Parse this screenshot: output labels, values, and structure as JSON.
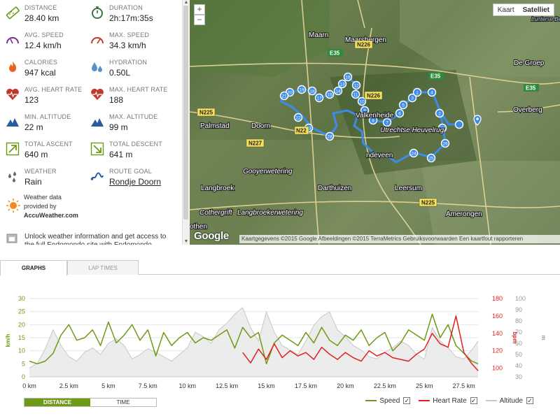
{
  "stats": {
    "distance": {
      "label": "DISTANCE",
      "value": "28.40 km"
    },
    "duration": {
      "label": "DURATION",
      "value": "2h:17m:35s"
    },
    "avg_speed": {
      "label": "AVG. SPEED",
      "value": "12.4 km/h"
    },
    "max_speed": {
      "label": "MAX. SPEED",
      "value": "34.3 km/h"
    },
    "calories": {
      "label": "CALORIES",
      "value": "947 kcal"
    },
    "hydration": {
      "label": "HYDRATION",
      "value": "0.50L"
    },
    "avg_hr": {
      "label": "AVG. HEART RATE",
      "value": "123"
    },
    "max_hr": {
      "label": "MAX. HEART RATE",
      "value": "188"
    },
    "min_alt": {
      "label": "MIN. ALTITUDE",
      "value": "22 m"
    },
    "max_alt": {
      "label": "MAX. ALTITUDE",
      "value": "99 m"
    },
    "ascent": {
      "label": "TOTAL ASCENT",
      "value": "640 m"
    },
    "descent": {
      "label": "TOTAL DESCENT",
      "value": "641 m"
    },
    "weather": {
      "label": "WEATHER",
      "value": "Rain"
    },
    "route_goal": {
      "label": "ROUTE GOAL",
      "value": "Rondje Doorn"
    }
  },
  "weather_credit": {
    "line1": "Weather data",
    "line2": "provided by",
    "brand": "AccuWeather.com"
  },
  "unlock": {
    "text": "Unlock weather information and get access to the full Endomondo site with Endomondo"
  },
  "map": {
    "zoom_in": "+",
    "zoom_out": "−",
    "type_map": "Kaart",
    "type_satellite": "Satelliet",
    "attribution": "Kaartgegevens ©2015 Google Afbeeldingen ©2015 TerraMetrics    Gebruiksvoorwaarden    Een kaartfout rapporteren",
    "google": "Google",
    "places": {
      "maarn": "Maarn",
      "maarsbergen": "Maarsbergen",
      "de_groep": "De Groep",
      "overberg": "Overberg",
      "palmstad": "Palmstad",
      "doorn": "Doorn",
      "valkenheide": "Valkenheide",
      "heuvelrug": "Utrechtse Heuvelrug",
      "gooyer": "Gooyerwetering",
      "langbroek": "Langbroek",
      "darthuizen": "Darthuizen",
      "leersum": "Leersum",
      "cothergrift": "Cothergrift",
      "langbroeker": "Langbroekerwetering",
      "amerongen": "Amerongen",
      "lunteren": "Lunterse Beek",
      "rothen": "othen",
      "overvee": "ndeveen"
    },
    "roads": {
      "n226a": "N226",
      "n226b": "N226",
      "n225a": "N225",
      "n225b": "N225",
      "n227": "N227",
      "n22": "N22",
      "e35a": "E35",
      "e35b": "E35",
      "e35c": "E35"
    },
    "markers": [
      "1",
      "2",
      "3",
      "4",
      "5",
      "6",
      "7",
      "8",
      "9",
      "10",
      "11",
      "12",
      "13",
      "14",
      "15",
      "16",
      "17",
      "18",
      "19",
      "20",
      "21",
      "22",
      "23",
      "24",
      "25",
      "26",
      "27",
      "28"
    ]
  },
  "tabs": {
    "graphs": "GRAPHS",
    "lap_times": "LAP TIMES"
  },
  "toggle": {
    "distance": "DISTANCE",
    "time": "TIME"
  },
  "legend": {
    "speed": "Speed",
    "heart_rate": "Heart Rate",
    "altitude": "Altitude",
    "check": "✓"
  },
  "colors": {
    "speed": "#6e9a16",
    "heart_rate": "#e02020",
    "altitude": "#c8c8c8",
    "route": "#3b8ce8"
  },
  "chart_data": {
    "type": "line",
    "x_unit_label": "km",
    "x_ticks": [
      "0 km",
      "2.5 km",
      "5 km",
      "7.5 km",
      "10 km",
      "12.5 km",
      "15 km",
      "17.5 km",
      "20 km",
      "22.5 km",
      "25 km",
      "27.5 km"
    ],
    "x_range": [
      0,
      28.4
    ],
    "y_left": {
      "label": "km/h",
      "range": [
        0,
        30
      ],
      "ticks": [
        "0",
        "5",
        "10",
        "15",
        "20",
        "25",
        "30"
      ]
    },
    "y_right1": {
      "label": "bpm",
      "range": [
        90,
        180
      ],
      "ticks": [
        "100",
        "120",
        "140",
        "160",
        "180"
      ]
    },
    "y_right2": {
      "label": "m",
      "range": [
        30,
        100
      ],
      "ticks": [
        "30",
        "40",
        "50",
        "60",
        "70",
        "80",
        "90",
        "100"
      ]
    },
    "series": [
      {
        "name": "Speed",
        "axis": "left",
        "x": [
          0,
          0.5,
          1,
          1.5,
          2,
          2.5,
          3,
          3.5,
          4,
          4.5,
          5,
          5.5,
          6,
          6.5,
          7,
          7.5,
          8,
          8.5,
          9,
          9.5,
          10,
          10.5,
          11,
          11.5,
          12,
          12.5,
          13,
          13.5,
          14,
          14.5,
          15,
          15.5,
          16,
          16.5,
          17,
          17.5,
          18,
          18.5,
          19,
          19.5,
          20,
          20.5,
          21,
          21.5,
          22,
          22.5,
          23,
          23.5,
          24,
          24.5,
          25,
          25.5,
          26,
          26.5,
          27,
          27.5,
          28,
          28.4
        ],
        "values": [
          6,
          5,
          6,
          9,
          16,
          20,
          14,
          15,
          18,
          12,
          21,
          13,
          16,
          20,
          14,
          18,
          8,
          17,
          12,
          15,
          17,
          13,
          15,
          14,
          16,
          18,
          11,
          19,
          15,
          17,
          5,
          13,
          16,
          14,
          12,
          17,
          13,
          19,
          14,
          12,
          16,
          14,
          18,
          12,
          15,
          17,
          10,
          13,
          18,
          16,
          14,
          24,
          15,
          20,
          12,
          9,
          6,
          5
        ]
      },
      {
        "name": "Heart Rate",
        "axis": "right1",
        "x": [
          13.5,
          14,
          14.5,
          15,
          15.5,
          16,
          16.5,
          17,
          17.5,
          18,
          18.5,
          19,
          19.5,
          20,
          20.5,
          21,
          21.5,
          22,
          22.5,
          23,
          23.5,
          24,
          24.5,
          25,
          25.5,
          26,
          26.5,
          27,
          27.5,
          28,
          28.4
        ],
        "values": [
          118,
          106,
          122,
          110,
          128,
          112,
          120,
          114,
          118,
          110,
          124,
          116,
          110,
          118,
          112,
          108,
          120,
          114,
          118,
          112,
          110,
          108,
          116,
          122,
          140,
          128,
          124,
          160,
          118,
          105,
          97
        ]
      },
      {
        "name": "Altitude",
        "axis": "right2",
        "x": [
          0,
          0.5,
          1,
          1.5,
          2,
          2.5,
          3,
          3.5,
          4,
          4.5,
          5,
          5.5,
          6,
          6.5,
          7,
          7.5,
          8,
          8.5,
          9,
          9.5,
          10,
          10.5,
          11,
          11.5,
          12,
          12.5,
          13,
          13.5,
          14,
          14.5,
          15,
          15.5,
          16,
          16.5,
          17,
          17.5,
          18,
          18.5,
          19,
          19.5,
          20,
          20.5,
          21,
          21.5,
          22,
          22.5,
          23,
          23.5,
          24,
          24.5,
          25,
          25.5,
          26,
          26.5,
          27,
          27.5,
          28,
          28.4
        ],
        "values": [
          38,
          42,
          55,
          72,
          58,
          48,
          44,
          52,
          56,
          50,
          60,
          64,
          58,
          46,
          50,
          55,
          52,
          48,
          44,
          50,
          56,
          70,
          66,
          60,
          72,
          78,
          86,
          92,
          74,
          62,
          88,
          70,
          58,
          54,
          50,
          62,
          76,
          84,
          88,
          72,
          66,
          58,
          54,
          48,
          46,
          52,
          56,
          62,
          58,
          50,
          46,
          74,
          62,
          56,
          48,
          46,
          54,
          62
        ]
      }
    ]
  }
}
